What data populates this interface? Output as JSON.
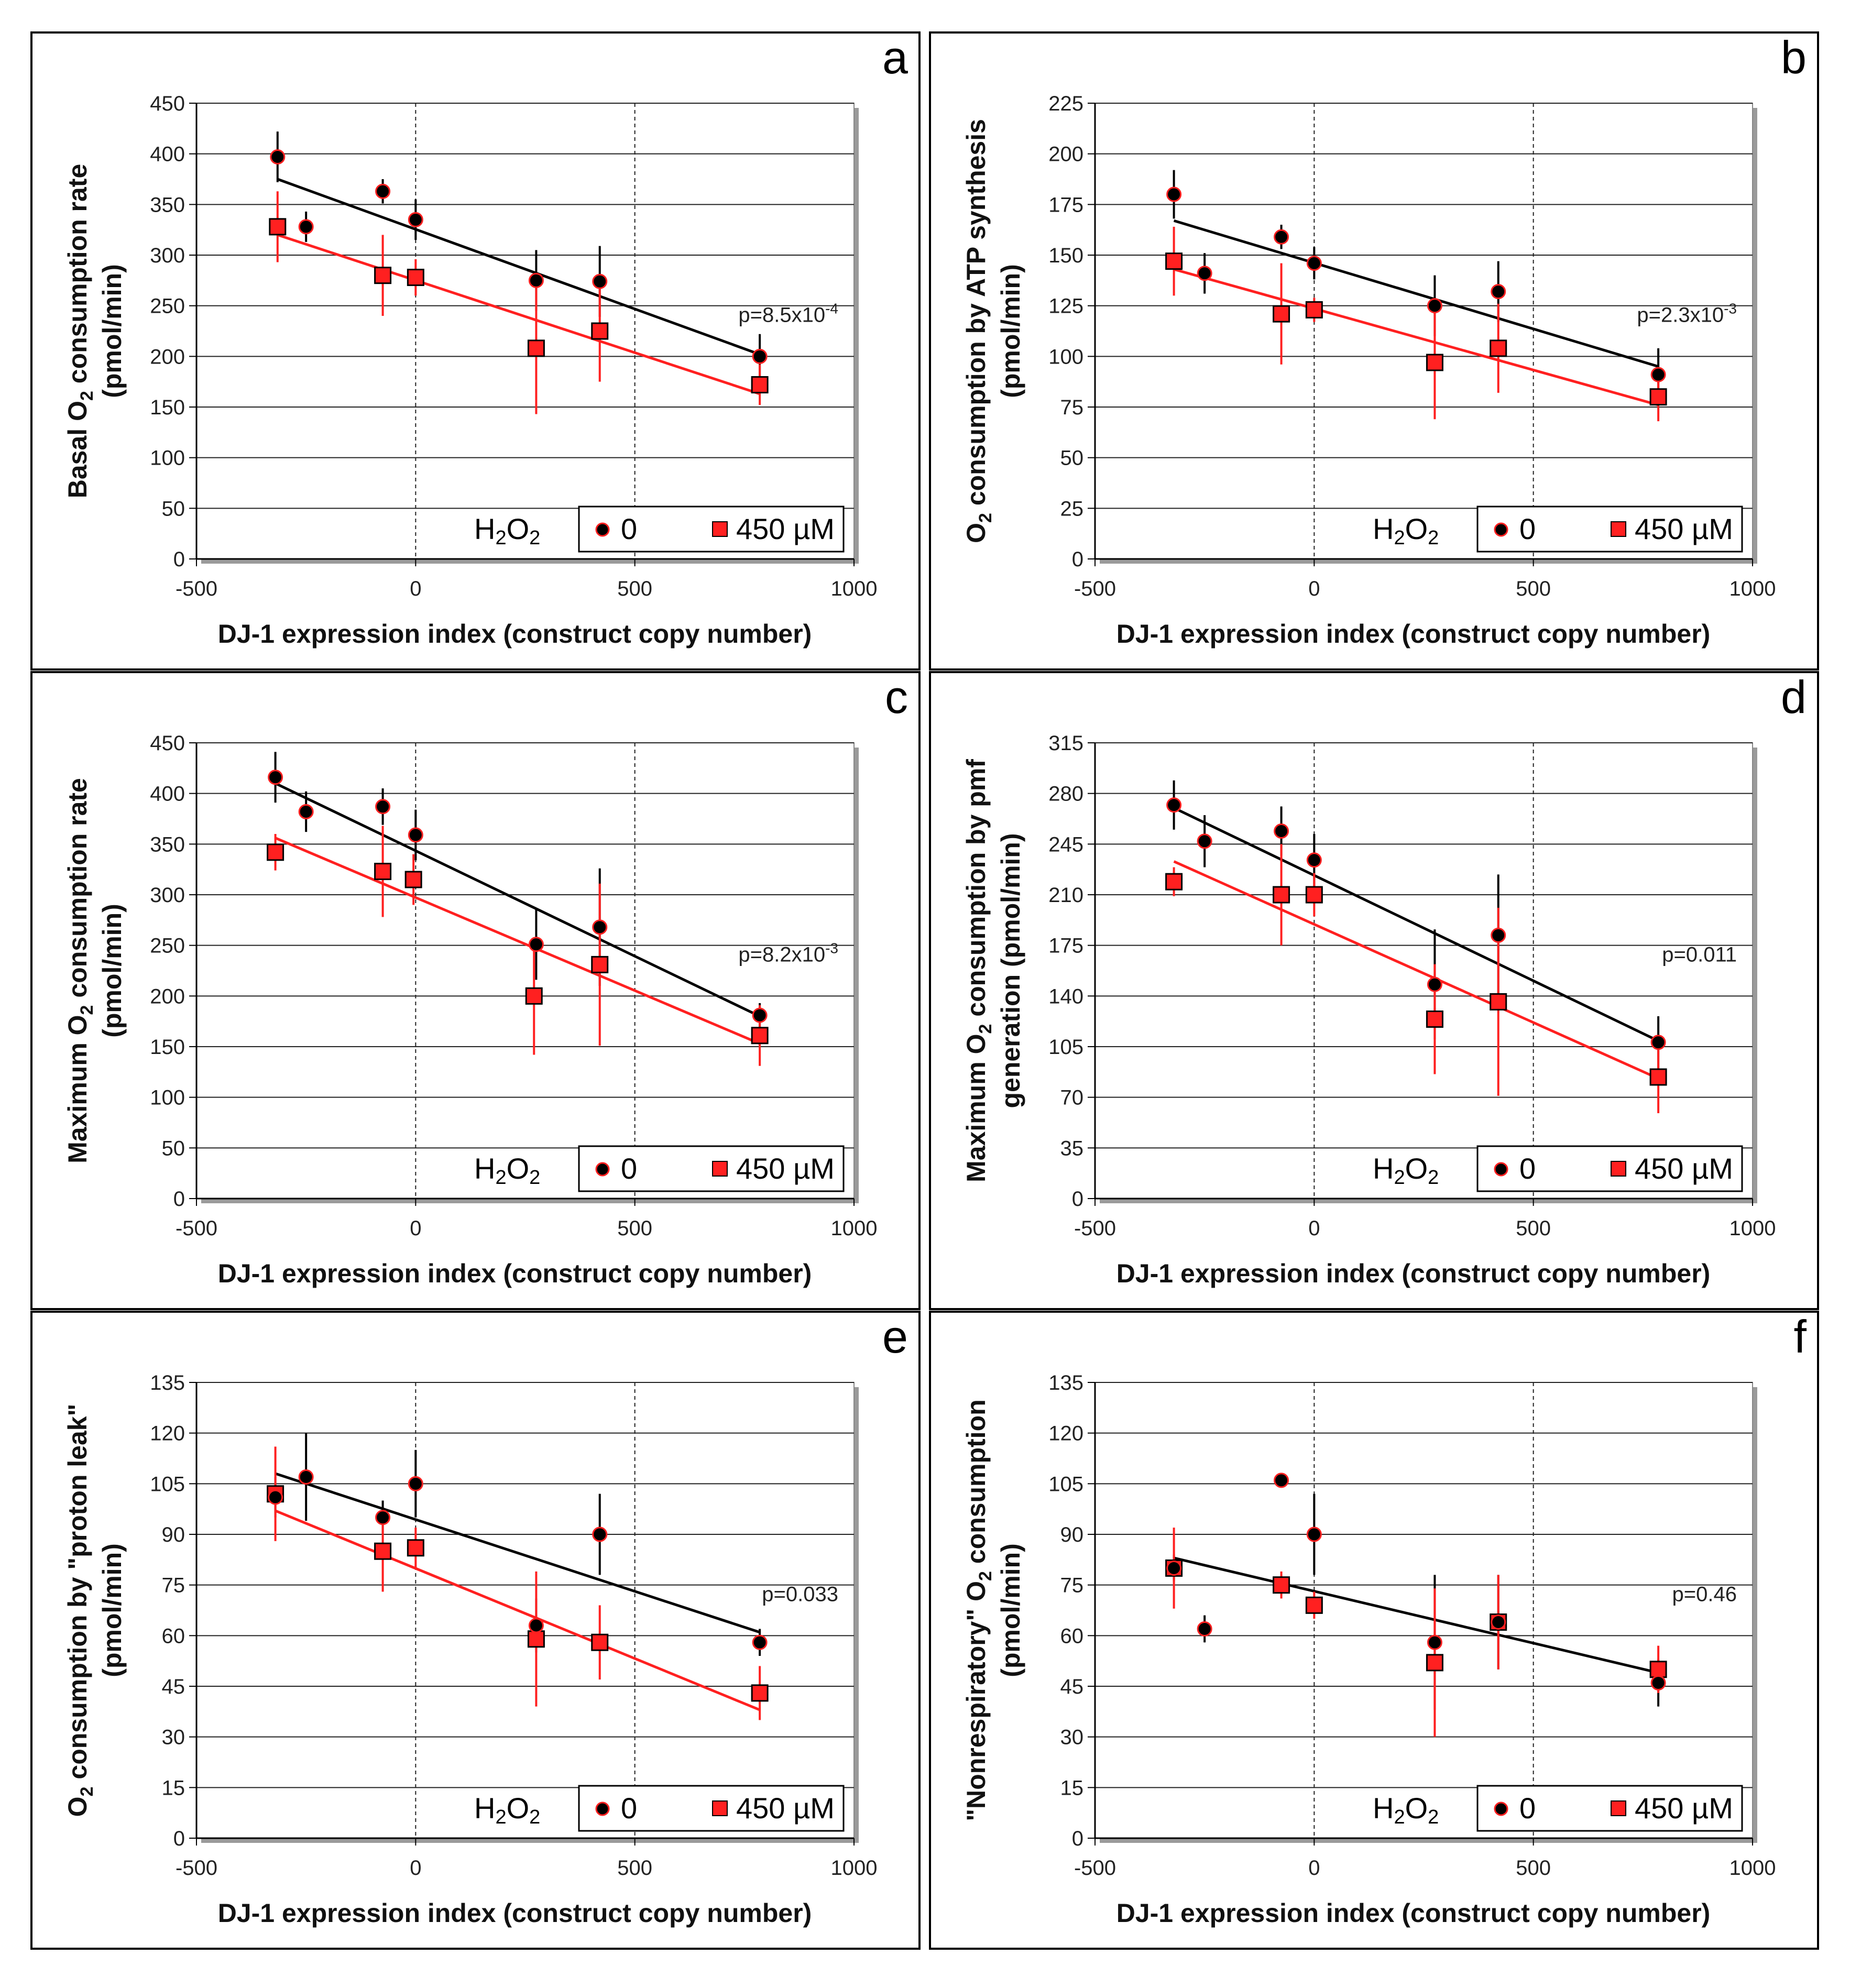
{
  "figure": {
    "x_axis_label": "DJ-1 expression index (construct copy number)",
    "legend": {
      "prefix": "H",
      "prefix_sub": "2",
      "prefix_mid": "O",
      "prefix_sub2": "2",
      "zero_label": "0",
      "treated_label": "450 µM"
    }
  },
  "chart_data": [
    {
      "panel": "a",
      "type": "scatter",
      "ylabel_lines": [
        [
          "Basal O",
          "2",
          " consumption rate"
        ],
        [
          "(pmol/min)"
        ]
      ],
      "xlim": [
        -500,
        1000
      ],
      "xticks": [
        -500,
        0,
        500,
        1000
      ],
      "ylim": [
        0,
        450
      ],
      "yticks": [
        0,
        50,
        100,
        150,
        200,
        250,
        300,
        350,
        400,
        450
      ],
      "p_label": {
        "main": "p=8.5x10",
        "sup": "-4"
      },
      "series": [
        {
          "name": "0",
          "color": "#000000",
          "x": [
            -315,
            -250,
            -75,
            0,
            275,
            420,
            785
          ],
          "y": [
            397,
            328,
            363,
            335,
            275,
            274,
            200
          ],
          "err": [
            25,
            15,
            12,
            20,
            30,
            35,
            22
          ],
          "fit": [
            [
              -315,
              375
            ],
            [
              785,
              202
            ]
          ]
        },
        {
          "name": "450 µM",
          "color": "#ff2020",
          "x": [
            -315,
            -75,
            0,
            275,
            420,
            785
          ],
          "y": [
            328,
            280,
            278,
            208,
            225,
            172
          ],
          "err": [
            35,
            40,
            18,
            65,
            50,
            20
          ],
          "fit": [
            [
              -315,
              320
            ],
            [
              785,
              163
            ]
          ]
        }
      ]
    },
    {
      "panel": "b",
      "type": "scatter",
      "ylabel_lines": [
        [
          "O",
          "2",
          " consumption by ATP synthesis"
        ],
        [
          "(pmol/min)"
        ]
      ],
      "xlim": [
        -500,
        1000
      ],
      "xticks": [
        -500,
        0,
        500,
        1000
      ],
      "ylim": [
        0,
        225
      ],
      "yticks": [
        0,
        25,
        50,
        75,
        100,
        125,
        150,
        175,
        200,
        225
      ],
      "p_label": {
        "main": "p=2.3x10",
        "sup": "-3"
      },
      "series": [
        {
          "name": "0",
          "color": "#000000",
          "x": [
            -320,
            -250,
            -75,
            0,
            275,
            420,
            785
          ],
          "y": [
            180,
            141,
            159,
            146,
            125,
            132,
            91
          ],
          "err": [
            12,
            10,
            6,
            8,
            15,
            15,
            13
          ],
          "fit": [
            [
              -320,
              167
            ],
            [
              785,
              95
            ]
          ]
        },
        {
          "name": "450 µM",
          "color": "#ff2020",
          "x": [
            -320,
            -75,
            0,
            275,
            420,
            785
          ],
          "y": [
            147,
            121,
            123,
            97,
            104,
            80
          ],
          "err": [
            17,
            25,
            6,
            28,
            22,
            12
          ],
          "fit": [
            [
              -320,
              143
            ],
            [
              785,
              76
            ]
          ]
        }
      ]
    },
    {
      "panel": "c",
      "type": "scatter",
      "ylabel_lines": [
        [
          "Maximum O",
          "2",
          " consumption rate"
        ],
        [
          "(pmol/min)"
        ]
      ],
      "xlim": [
        -500,
        1000
      ],
      "xticks": [
        -500,
        0,
        500,
        1000
      ],
      "ylim": [
        0,
        450
      ],
      "yticks": [
        0,
        50,
        100,
        150,
        200,
        250,
        300,
        350,
        400,
        450
      ],
      "p_label": {
        "main": "p=8.2x10",
        "sup": "-3"
      },
      "series": [
        {
          "name": "0",
          "color": "#000000",
          "x": [
            -320,
            -250,
            -75,
            0,
            275,
            420,
            785
          ],
          "y": [
            416,
            382,
            387,
            359,
            251,
            268,
            181
          ],
          "err": [
            25,
            20,
            18,
            25,
            35,
            58,
            12
          ],
          "fit": [
            [
              -320,
              410
            ],
            [
              785,
              180
            ]
          ]
        },
        {
          "name": "450 µM",
          "color": "#ff2020",
          "x": [
            -320,
            -75,
            -5,
            270,
            420,
            785
          ],
          "y": [
            342,
            323,
            315,
            200,
            231,
            161
          ],
          "err": [
            18,
            45,
            25,
            58,
            80,
            30
          ],
          "fit": [
            [
              -320,
              356
            ],
            [
              785,
              153
            ]
          ]
        }
      ]
    },
    {
      "panel": "d",
      "type": "scatter",
      "ylabel_lines": [
        [
          "Maximum O",
          "2",
          " consumption by pmf"
        ],
        [
          "generation (pmol/min)"
        ]
      ],
      "xlim": [
        -500,
        1000
      ],
      "xticks": [
        -500,
        0,
        500,
        1000
      ],
      "ylim": [
        0,
        315
      ],
      "yticks": [
        0,
        35,
        70,
        105,
        140,
        175,
        210,
        245,
        280,
        315
      ],
      "p_label": {
        "main": "p=0.011",
        "sup": ""
      },
      "series": [
        {
          "name": "0",
          "color": "#000000",
          "x": [
            -320,
            -250,
            -75,
            0,
            275,
            420,
            785
          ],
          "y": [
            272,
            247,
            254,
            234,
            148,
            182,
            108
          ],
          "err": [
            17,
            18,
            17,
            18,
            38,
            42,
            18
          ],
          "fit": [
            [
              -320,
              270
            ],
            [
              785,
              109
            ]
          ]
        },
        {
          "name": "450 µM",
          "color": "#ff2020",
          "x": [
            -320,
            -75,
            0,
            275,
            420,
            785
          ],
          "y": [
            219,
            210,
            210,
            124,
            136,
            84
          ],
          "err": [
            10,
            35,
            15,
            38,
            65,
            25
          ],
          "fit": [
            [
              -320,
              233
            ],
            [
              785,
              83
            ]
          ]
        }
      ]
    },
    {
      "panel": "e",
      "type": "scatter",
      "ylabel_lines": [
        [
          "O",
          "2",
          " consumption by \"proton leak\""
        ],
        [
          "(pmol/min)"
        ]
      ],
      "xlim": [
        -500,
        1000
      ],
      "xticks": [
        -500,
        0,
        500,
        1000
      ],
      "ylim": [
        0,
        135
      ],
      "yticks": [
        0,
        15,
        30,
        45,
        60,
        75,
        90,
        105,
        120,
        135
      ],
      "p_label": {
        "main": "p=0.033",
        "sup": ""
      },
      "series": [
        {
          "name": "0",
          "color": "#000000",
          "x": [
            -320,
            -250,
            -75,
            0,
            275,
            420,
            785
          ],
          "y": [
            101,
            107,
            95,
            105,
            63,
            90,
            58
          ],
          "err": [
            6,
            13,
            5,
            10,
            8,
            12,
            4
          ],
          "fit": [
            [
              -320,
              108
            ],
            [
              785,
              61
            ]
          ]
        },
        {
          "name": "450 µM",
          "color": "#ff2020",
          "x": [
            -320,
            -75,
            0,
            275,
            420,
            785
          ],
          "y": [
            102,
            85,
            86,
            59,
            58,
            43
          ],
          "err": [
            14,
            12,
            6,
            20,
            11,
            8
          ],
          "fit": [
            [
              -320,
              97
            ],
            [
              785,
              38
            ]
          ]
        }
      ]
    },
    {
      "panel": "f",
      "type": "scatter",
      "ylabel_lines": [
        [
          "\"Nonrespiratory\" O",
          "2",
          " consumption"
        ],
        [
          "(pmol/min)"
        ]
      ],
      "xlim": [
        -500,
        1000
      ],
      "xticks": [
        -500,
        0,
        500,
        1000
      ],
      "ylim": [
        0,
        135
      ],
      "yticks": [
        0,
        15,
        30,
        45,
        60,
        75,
        90,
        105,
        120,
        135
      ],
      "p_label": {
        "main": "p=0.46",
        "sup": ""
      },
      "series": [
        {
          "name": "0",
          "color": "#000000",
          "x": [
            -320,
            -250,
            -75,
            0,
            275,
            420,
            785
          ],
          "y": [
            80,
            62,
            106,
            90,
            58,
            64,
            46
          ],
          "err": [
            4,
            4,
            2,
            12,
            20,
            14,
            7
          ],
          "fit": [
            [
              -320,
              83
            ],
            [
              785,
              49
            ]
          ]
        },
        {
          "name": "450 µM",
          "color": "#ff2020",
          "x": [
            -320,
            -75,
            0,
            275,
            420,
            785
          ],
          "y": [
            80,
            75,
            69,
            52,
            64,
            50
          ],
          "err": [
            12,
            4,
            4,
            22,
            14,
            7
          ],
          "fit": null
        }
      ]
    }
  ]
}
